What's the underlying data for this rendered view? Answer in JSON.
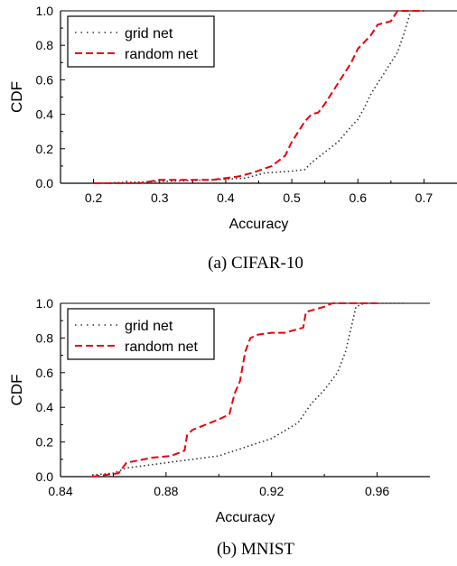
{
  "chart_data": [
    {
      "type": "line",
      "caption": "(a) CIFAR-10",
      "xlabel": "Accuracy",
      "ylabel": "CDF",
      "xlim": [
        0.15,
        0.75
      ],
      "ylim": [
        0.0,
        1.0
      ],
      "xticks": [
        0.2,
        0.3,
        0.4,
        0.5,
        0.6,
        0.7
      ],
      "xtick_labels": [
        "0.2",
        "0.3",
        "0.4",
        "0.5",
        "0.6",
        "0.7"
      ],
      "yticks": [
        0.0,
        0.2,
        0.4,
        0.6,
        0.8,
        1.0
      ],
      "ytick_labels": [
        "0.0",
        "0.2",
        "0.4",
        "0.6",
        "0.8",
        "1.0"
      ],
      "grid": false,
      "legend": "top-left",
      "series": [
        {
          "name": "grid net",
          "color": "#333333",
          "style": "dotted",
          "x": [
            0.2,
            0.3,
            0.38,
            0.43,
            0.46,
            0.5,
            0.52,
            0.53,
            0.55,
            0.57,
            0.59,
            0.6,
            0.61,
            0.62,
            0.63,
            0.64,
            0.66,
            0.67,
            0.68,
            0.7
          ],
          "y": [
            0.0,
            0.01,
            0.02,
            0.03,
            0.06,
            0.07,
            0.08,
            0.12,
            0.18,
            0.24,
            0.33,
            0.37,
            0.44,
            0.52,
            0.58,
            0.64,
            0.76,
            0.87,
            1.0,
            1.0
          ]
        },
        {
          "name": "random net",
          "color": "#e8000b",
          "style": "dashed",
          "x": [
            0.2,
            0.27,
            0.3,
            0.38,
            0.42,
            0.44,
            0.47,
            0.49,
            0.5,
            0.51,
            0.52,
            0.53,
            0.54,
            0.55,
            0.56,
            0.57,
            0.58,
            0.59,
            0.6,
            0.61,
            0.62,
            0.63,
            0.65,
            0.66,
            0.7
          ],
          "y": [
            0.0,
            0.0,
            0.02,
            0.02,
            0.04,
            0.06,
            0.1,
            0.16,
            0.24,
            0.3,
            0.36,
            0.4,
            0.41,
            0.46,
            0.52,
            0.58,
            0.64,
            0.7,
            0.78,
            0.82,
            0.86,
            0.92,
            0.94,
            1.0,
            1.0
          ]
        }
      ]
    },
    {
      "type": "line",
      "caption": "(b) MNIST",
      "xlabel": "Accuracy",
      "ylabel": "CDF",
      "xlim": [
        0.84,
        0.98
      ],
      "ylim": [
        0.0,
        1.0
      ],
      "xticks": [
        0.84,
        0.88,
        0.92,
        0.96
      ],
      "xtick_labels": [
        "0.84",
        "0.88",
        "0.92",
        "0.96"
      ],
      "yticks": [
        0.0,
        0.2,
        0.4,
        0.6,
        0.8,
        1.0
      ],
      "ytick_labels": [
        "0.0",
        "0.2",
        "0.4",
        "0.6",
        "0.8",
        "1.0"
      ],
      "grid": false,
      "legend": "top-left",
      "series": [
        {
          "name": "grid net",
          "color": "#333333",
          "style": "dotted",
          "x": [
            0.852,
            0.86,
            0.865,
            0.875,
            0.89,
            0.9,
            0.91,
            0.92,
            0.93,
            0.935,
            0.94,
            0.945,
            0.948,
            0.95,
            0.952,
            0.955,
            0.97
          ],
          "y": [
            0.01,
            0.02,
            0.05,
            0.07,
            0.1,
            0.12,
            0.17,
            0.22,
            0.31,
            0.42,
            0.5,
            0.6,
            0.72,
            0.85,
            0.98,
            1.0,
            1.0
          ]
        },
        {
          "name": "random net",
          "color": "#e8000b",
          "style": "dashed",
          "x": [
            0.852,
            0.862,
            0.865,
            0.875,
            0.882,
            0.887,
            0.888,
            0.89,
            0.895,
            0.9,
            0.904,
            0.906,
            0.908,
            0.91,
            0.912,
            0.915,
            0.92,
            0.925,
            0.932,
            0.933,
            0.94,
            0.943,
            0.948,
            0.96
          ],
          "y": [
            0.0,
            0.02,
            0.08,
            0.11,
            0.12,
            0.15,
            0.24,
            0.27,
            0.3,
            0.33,
            0.36,
            0.48,
            0.55,
            0.72,
            0.8,
            0.82,
            0.83,
            0.83,
            0.86,
            0.95,
            0.98,
            1.0,
            1.0,
            1.0
          ]
        }
      ]
    }
  ]
}
